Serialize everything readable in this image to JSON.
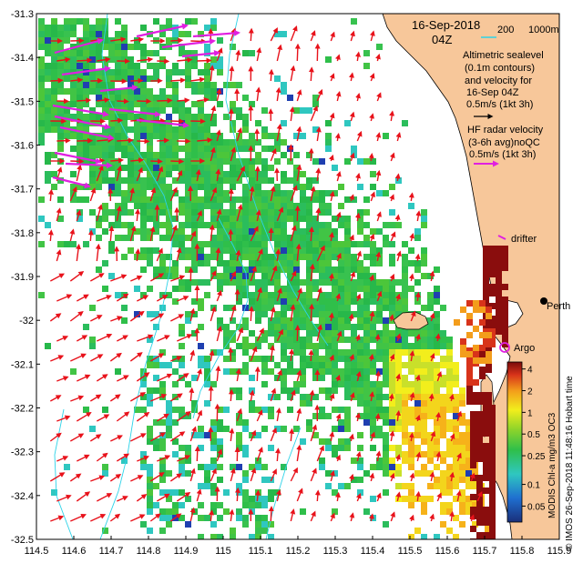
{
  "map": {
    "date": "16-Sep-2018",
    "time": "04Z",
    "x_ticks": [
      "114.5",
      "114.6",
      "114.7",
      "114.8",
      "114.9",
      "115",
      "115.1",
      "115.2",
      "115.3",
      "115.4",
      "115.5",
      "115.6",
      "115.7",
      "115.8",
      "115.9"
    ],
    "y_ticks": [
      "-31.3",
      "-31.4",
      "-31.5",
      "-31.6",
      "-31.7",
      "-31.8",
      "-31.9",
      "-32",
      "-32.1",
      "-32.2",
      "-32.3",
      "-32.4",
      "-32.5"
    ],
    "lon_range": [
      114.5,
      115.9
    ],
    "lat_range": [
      -32.5,
      -31.3
    ],
    "colors": {
      "land": "#F7C79A",
      "alt_arrow": "#E8121B",
      "radar_arrow": "#E020E0",
      "contour": "#2ED3E8",
      "shelf": "#7A0A0A"
    }
  },
  "legend": {
    "depth_200": "200",
    "depth_1000": "1000m",
    "alt_line1": "Altimetric sealevel",
    "alt_line2": "(0.1m contours)",
    "alt_line3": "and velocity for",
    "alt_line4": "16-Sep 04Z",
    "alt_scale": "0.5m/s (1kt 3h)",
    "hf_line1": "HF radar velocity",
    "hf_line2": "(3-6h avg)noQC",
    "hf_scale": "0.5m/s (1kt 3h)",
    "drifter": "drifter",
    "argo": "Argo",
    "city": "Perth"
  },
  "colorbar": {
    "ticks": [
      "4",
      "2",
      "1",
      "0.5",
      "0.25",
      "0.1",
      "0.05"
    ],
    "vertical_label": "MODIS Chl-a mg/m3 OC3"
  },
  "credit": "© IMOS 26-Sep-2018 11:48:16 Hobart time"
}
